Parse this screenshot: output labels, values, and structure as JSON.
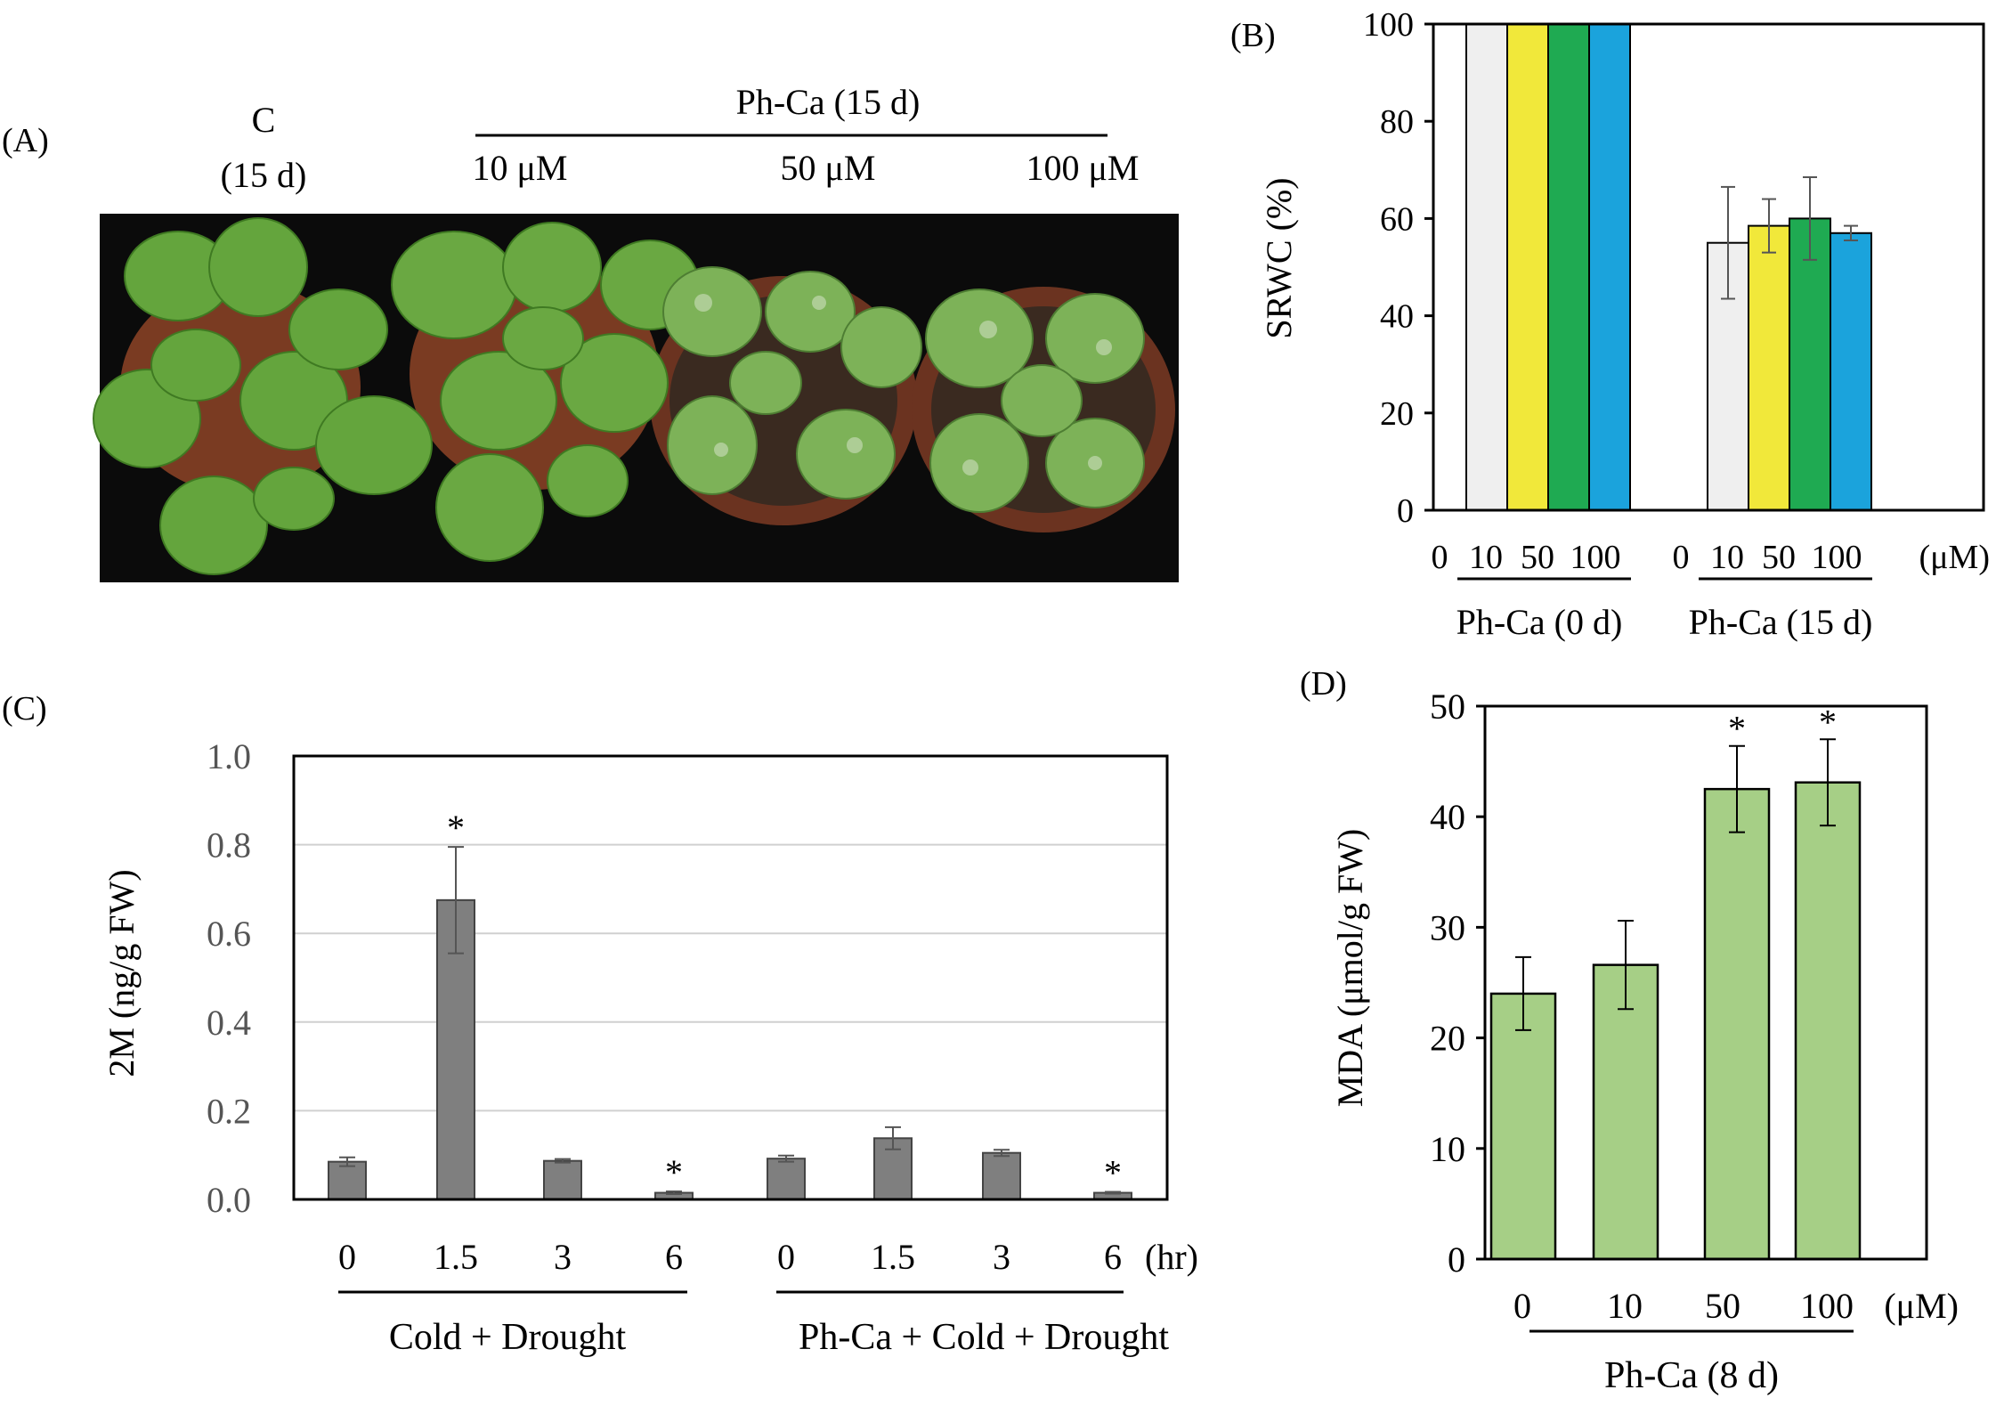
{
  "panel_a": {
    "panel_label": "(A)",
    "control_label": "C",
    "control_duration": "(15 d)",
    "treatment_label": "Ph-Ca (15 d)",
    "concentrations": [
      "10 μM",
      "50 μM",
      "100 μM"
    ],
    "background_color": "#0b0b0b",
    "leaf_color": "#5f9e3a",
    "pot_color": "#7a3b22"
  },
  "chart_data": [
    {
      "id": "B",
      "panel_label": "(B)",
      "type": "bar",
      "ylabel": "SRWC (%)",
      "ylim": [
        0,
        100
      ],
      "yticks": [
        0,
        20,
        40,
        60,
        80,
        100
      ],
      "grid": false,
      "group_labels": [
        "Ph-Ca (0 d)",
        "Ph-Ca (15 d)"
      ],
      "category_labels": [
        "0",
        "10",
        "50",
        "100"
      ],
      "unit_label": "(μM)",
      "series_colors": [
        "#efefef",
        "#f1e83a",
        "#1faa52",
        "#1ba3dc"
      ],
      "groups": [
        {
          "values": [
            100,
            100,
            100,
            100
          ],
          "errors": [
            0,
            0,
            0,
            0
          ]
        },
        {
          "values": [
            55,
            58.5,
            60,
            57
          ],
          "errors": [
            11.5,
            5.5,
            8.5,
            1.5
          ]
        }
      ]
    },
    {
      "id": "C",
      "panel_label": "(C)",
      "type": "bar",
      "ylabel": "2M (ng/g FW)",
      "ylim": [
        0,
        1.0
      ],
      "yticks": [
        "0.0",
        "0.2",
        "0.4",
        "0.6",
        "0.8",
        "1.0"
      ],
      "grid": true,
      "bar_color": "#7f7f7f",
      "x_labels": [
        "0",
        "1.5",
        "3",
        "6",
        "0",
        "1.5",
        "3",
        "6"
      ],
      "unit_label": "(hr)",
      "group_labels": [
        "Cold + Drought",
        "Ph-Ca + Cold + Drought"
      ],
      "values": [
        0.085,
        0.675,
        0.087,
        0.015,
        0.092,
        0.138,
        0.105,
        0.015
      ],
      "errors": [
        0.01,
        0.12,
        0.004,
        0.003,
        0.007,
        0.025,
        0.007,
        0.002
      ],
      "significance": [
        "",
        "*",
        "",
        "*",
        "",
        "",
        "",
        "*"
      ]
    },
    {
      "id": "D",
      "panel_label": "(D)",
      "type": "bar",
      "ylabel": "MDA (μmol/g FW)",
      "ylim": [
        0,
        50
      ],
      "yticks": [
        0,
        10,
        20,
        30,
        40,
        50
      ],
      "grid": false,
      "bar_color": "#a6cf86",
      "x_labels": [
        "0",
        "10",
        "50",
        "100"
      ],
      "unit_label": "(μM)",
      "group_label": "Ph-Ca (8 d)",
      "values": [
        24,
        26.6,
        42.5,
        43.1
      ],
      "errors": [
        3.3,
        4.0,
        3.9,
        3.9
      ],
      "significance": [
        "",
        "",
        "*",
        "*"
      ]
    }
  ]
}
